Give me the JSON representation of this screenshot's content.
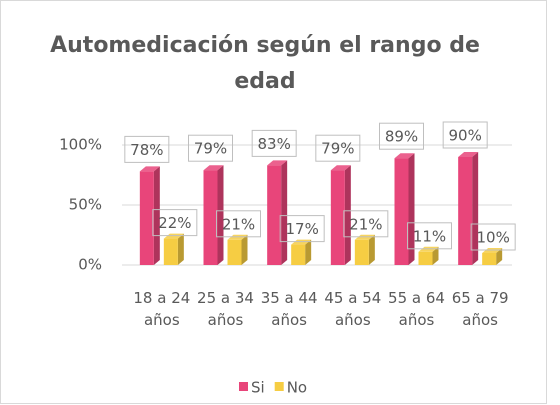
{
  "chart_data": {
    "type": "bar3d",
    "title": "Automedicación según el rango de edad",
    "categories": [
      "18 a 24 años",
      "25 a 34 años",
      "35 a 44 años",
      "45 a 54 años",
      "55 a 64 años",
      "65 a 79 años"
    ],
    "series": [
      {
        "name": "Si",
        "color": "#e8457a",
        "values": [
          78,
          79,
          83,
          79,
          89,
          90
        ],
        "value_labels": [
          "78%",
          "79%",
          "83%",
          "79%",
          "89%",
          "90%"
        ]
      },
      {
        "name": "No",
        "color": "#f6cd43",
        "values": [
          22,
          21,
          17,
          21,
          11,
          10
        ],
        "value_labels": [
          "22%",
          "21%",
          "17%",
          "21%",
          "11%",
          "10%"
        ]
      }
    ],
    "ylim": [
      0,
      100
    ],
    "yticks": [
      {
        "value": 0,
        "label": "0%"
      },
      {
        "value": 50,
        "label": "50%"
      },
      {
        "value": 100,
        "label": "100%"
      }
    ],
    "grid": true,
    "legend": "bottom"
  }
}
